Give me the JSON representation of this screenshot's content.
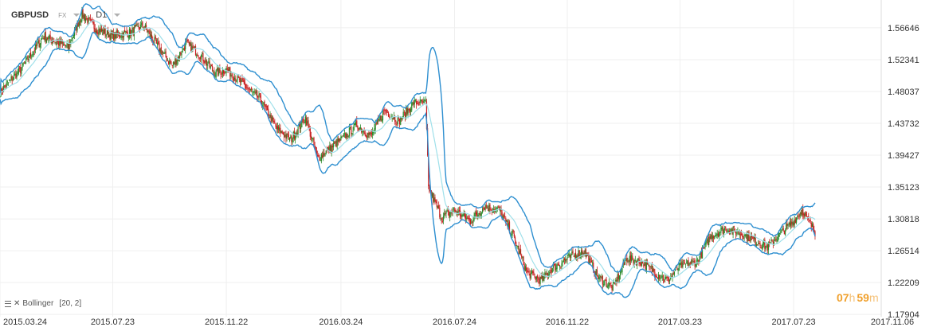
{
  "header": {
    "symbol": "GBPUSD",
    "market": "FX",
    "timeframe": "D1"
  },
  "indicator": {
    "label": "Bollinger",
    "params": "[20,  2]"
  },
  "timer": {
    "h_value": "07",
    "h_unit": "h",
    "m_value": "59",
    "m_unit": "m"
  },
  "colors": {
    "band": "#2e8fd0",
    "middle": "#9fe0ea",
    "up": "#2a8a2a",
    "down": "#c81e1e",
    "grid": "#efefef"
  },
  "chart_data": {
    "type": "line",
    "series_kind": "candlestick-with-bollinger-bands",
    "symbol": "GBPUSD",
    "timeframe": "D1",
    "ylim": [
      1.176,
      1.604
    ],
    "y_ticks": [
      "1.56646",
      "1.52341",
      "1.48037",
      "1.43732",
      "1.39427",
      "1.35123",
      "1.30818",
      "1.26514",
      "1.22209",
      "1.17904"
    ],
    "x_ticks": [
      "2015.03.24",
      "2015.07.23",
      "2015.11.22",
      "2016.03.24",
      "2016.07.24",
      "2016.11.22",
      "2017.03.23",
      "2017.07.23",
      "2017.11.06"
    ],
    "grid": true,
    "indicator": "Bollinger [20, 2]",
    "close_path": [
      [
        "2015.03.24",
        1.48
      ],
      [
        "2015.04.15",
        1.51
      ],
      [
        "2015.05.10",
        1.555
      ],
      [
        "2015.06.05",
        1.54
      ],
      [
        "2015.06.20",
        1.585
      ],
      [
        "2015.07.05",
        1.565
      ],
      [
        "2015.07.23",
        1.555
      ],
      [
        "2015.08.10",
        1.56
      ],
      [
        "2015.08.25",
        1.57
      ],
      [
        "2015.09.10",
        1.54
      ],
      [
        "2015.09.25",
        1.515
      ],
      [
        "2015.10.10",
        1.545
      ],
      [
        "2015.10.25",
        1.53
      ],
      [
        "2015.11.10",
        1.505
      ],
      [
        "2015.11.22",
        1.51
      ],
      [
        "2015.12.10",
        1.49
      ],
      [
        "2015.12.28",
        1.47
      ],
      [
        "2016.01.15",
        1.43
      ],
      [
        "2016.01.30",
        1.415
      ],
      [
        "2016.02.15",
        1.445
      ],
      [
        "2016.02.28",
        1.39
      ],
      [
        "2016.03.24",
        1.415
      ],
      [
        "2016.04.10",
        1.435
      ],
      [
        "2016.04.25",
        1.42
      ],
      [
        "2016.05.10",
        1.455
      ],
      [
        "2016.05.25",
        1.44
      ],
      [
        "2016.06.10",
        1.465
      ],
      [
        "2016.06.23",
        1.465
      ],
      [
        "2016.06.26",
        1.35
      ],
      [
        "2016.07.10",
        1.31
      ],
      [
        "2016.07.24",
        1.32
      ],
      [
        "2016.08.10",
        1.305
      ],
      [
        "2016.08.25",
        1.325
      ],
      [
        "2016.09.10",
        1.32
      ],
      [
        "2016.09.25",
        1.285
      ],
      [
        "2016.10.10",
        1.235
      ],
      [
        "2016.10.25",
        1.225
      ],
      [
        "2016.11.05",
        1.24
      ],
      [
        "2016.11.22",
        1.255
      ],
      [
        "2016.12.10",
        1.265
      ],
      [
        "2016.12.25",
        1.23
      ],
      [
        "2017.01.10",
        1.215
      ],
      [
        "2017.01.25",
        1.255
      ],
      [
        "2017.02.10",
        1.25
      ],
      [
        "2017.02.25",
        1.235
      ],
      [
        "2017.03.10",
        1.225
      ],
      [
        "2017.03.23",
        1.245
      ],
      [
        "2017.04.10",
        1.25
      ],
      [
        "2017.04.25",
        1.285
      ],
      [
        "2017.05.10",
        1.295
      ],
      [
        "2017.05.25",
        1.29
      ],
      [
        "2017.06.10",
        1.28
      ],
      [
        "2017.06.25",
        1.27
      ],
      [
        "2017.07.10",
        1.29
      ],
      [
        "2017.07.23",
        1.305
      ],
      [
        "2017.08.01",
        1.32
      ],
      [
        "2017.08.15",
        1.29
      ]
    ]
  }
}
